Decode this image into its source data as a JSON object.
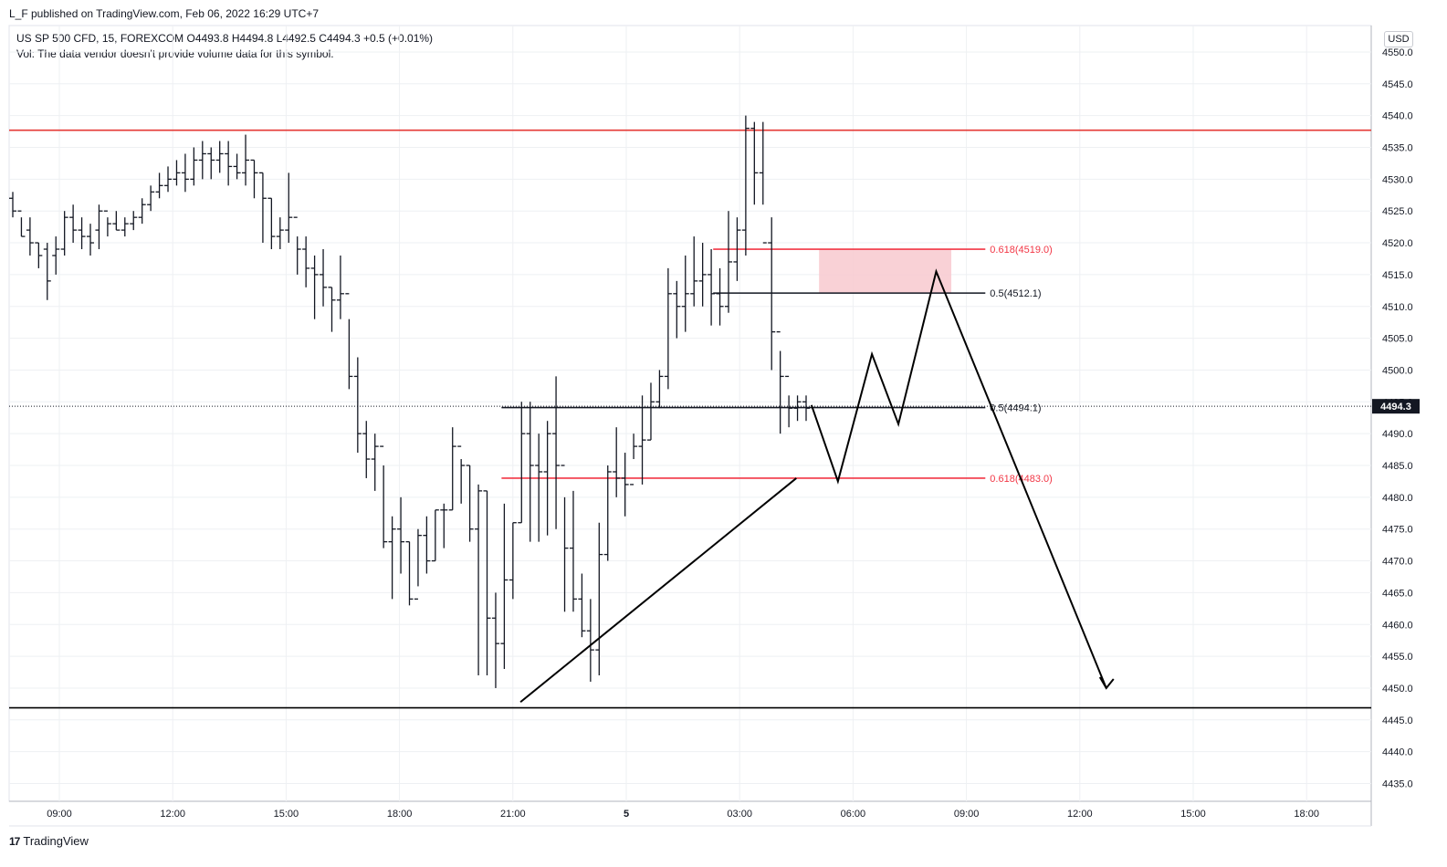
{
  "header": {
    "published": "L_F published on TradingView.com, Feb 06, 2022 16:29 UTC+7",
    "symbol_line": "US SP 500 CFD, 15, FOREXCOM  O4493.8  H4494.8  L4492.5  C4494.3  +0.5 (+0.01%)",
    "volume_line": "Vol: The data vendor doesn't provide volume data for this symbol.",
    "currency": "USD"
  },
  "footer": {
    "logo": "17",
    "brand": "TradingView"
  },
  "colors": {
    "bars": "#131722",
    "resistance": "#e53935",
    "support": "#000000",
    "fib_red": "#f23645",
    "zone": "#f8c9cf",
    "grid": "#eef0f3"
  },
  "chart_data": {
    "type": "ohlc-bar",
    "symbol": "US SP 500 CFD",
    "timeframe": "15",
    "y_axis_ticks": [
      4435,
      4440,
      4445,
      4450,
      4455,
      4460,
      4465,
      4470,
      4475,
      4480,
      4485,
      4490,
      4495,
      4500,
      4505,
      4510,
      4515,
      4520,
      4525,
      4530,
      4535,
      4540,
      4545,
      4550
    ],
    "ylim": [
      4432.4,
      4555.3
    ],
    "last_price": "4494.3",
    "x_ticks": [
      "09:00",
      "12:00",
      "15:00",
      "18:00",
      "21:00",
      "5",
      "03:00",
      "06:00",
      "09:00",
      "12:00",
      "15:00",
      "18:00"
    ],
    "bars": [
      [
        4527,
        4528,
        4524,
        4525
      ],
      [
        4525,
        4524,
        4521,
        4521
      ],
      [
        4522,
        4524,
        4518,
        4520
      ],
      [
        4520,
        4520,
        4516,
        4518
      ],
      [
        4519,
        4520,
        4511,
        4514
      ],
      [
        4518,
        4521,
        4515,
        4519
      ],
      [
        4519,
        4525,
        4518,
        4524
      ],
      [
        4524,
        4526,
        4520,
        4522
      ],
      [
        4522,
        4524,
        4519,
        4521
      ],
      [
        4521,
        4523,
        4518,
        4520
      ],
      [
        4522,
        4526,
        4519,
        4525
      ],
      [
        4525,
        4524,
        4521,
        4523
      ],
      [
        4523,
        4525,
        4522,
        4522
      ],
      [
        4522,
        4524,
        4521,
        4523
      ],
      [
        4523,
        4525,
        4522,
        4524
      ],
      [
        4524,
        4527,
        4523,
        4526
      ],
      [
        4526,
        4529,
        4525,
        4528
      ],
      [
        4528,
        4531,
        4527,
        4529
      ],
      [
        4529,
        4532,
        4528,
        4530
      ],
      [
        4530,
        4533,
        4529,
        4531
      ],
      [
        4531,
        4534,
        4528,
        4530
      ],
      [
        4530,
        4535,
        4529,
        4533
      ],
      [
        4533,
        4536,
        4530,
        4534
      ],
      [
        4534,
        4535,
        4530,
        4533
      ],
      [
        4533,
        4536,
        4531,
        4534
      ],
      [
        4534,
        4536,
        4529,
        4532
      ],
      [
        4532,
        4534,
        4530,
        4531
      ],
      [
        4531,
        4537,
        4529,
        4533
      ],
      [
        4533,
        4533,
        4527,
        4531
      ],
      [
        4531,
        4531,
        4520,
        4527
      ],
      [
        4527,
        4527,
        4519,
        4521
      ],
      [
        4521,
        4524,
        4519,
        4522
      ],
      [
        4522,
        4531,
        4520,
        4524
      ],
      [
        4524,
        4521,
        4515,
        4519
      ],
      [
        4519,
        4521,
        4513,
        4516
      ],
      [
        4516,
        4518,
        4508,
        4515
      ],
      [
        4515,
        4519,
        4510,
        4513
      ],
      [
        4513,
        4513,
        4506,
        4511
      ],
      [
        4511,
        4518,
        4508,
        4512
      ],
      [
        4512,
        4508,
        4497,
        4499
      ],
      [
        4499,
        4502,
        4487,
        4490
      ],
      [
        4490,
        4492,
        4483,
        4486
      ],
      [
        4486,
        4490,
        4481,
        4488
      ],
      [
        4488,
        4485,
        4472,
        4473
      ],
      [
        4473,
        4477,
        4464,
        4475
      ],
      [
        4475,
        4480,
        4468,
        4473
      ],
      [
        4473,
        4473,
        4463,
        4464
      ],
      [
        4464,
        4475,
        4466,
        4474
      ],
      [
        4474,
        4477,
        4468,
        4470
      ],
      [
        4470,
        4478,
        4470,
        4478
      ],
      [
        4478,
        4479,
        4472,
        4478
      ],
      [
        4478,
        4491,
        4478,
        4488
      ],
      [
        4488,
        4486,
        4479,
        4485
      ],
      [
        4485,
        4485,
        4473,
        4475
      ],
      [
        4475,
        4482,
        4452,
        4481
      ],
      [
        4481,
        4481,
        4452,
        4461
      ],
      [
        4461,
        4465,
        4450,
        4457
      ],
      [
        4457,
        4479,
        4453,
        4467
      ],
      [
        4467,
        4476,
        4464,
        4476
      ],
      [
        4476,
        4495,
        4476,
        4490
      ],
      [
        4490,
        4495,
        4473,
        4485
      ],
      [
        4485,
        4490,
        4473,
        4484
      ],
      [
        4484,
        4492,
        4474,
        4490
      ],
      [
        4490,
        4499,
        4475,
        4485
      ],
      [
        4485,
        4480,
        4462,
        4472
      ],
      [
        4472,
        4481,
        4462,
        4464
      ],
      [
        4464,
        4468,
        4458,
        4459
      ],
      [
        4459,
        4464,
        4451,
        4456
      ],
      [
        4456,
        4476,
        4452,
        4471
      ],
      [
        4471,
        4485,
        4470,
        4484
      ],
      [
        4484,
        4491,
        4480,
        4483
      ],
      [
        4483,
        4487,
        4477,
        4482
      ],
      [
        4482,
        4490,
        4486,
        4488
      ],
      [
        4488,
        4496,
        4482,
        4489
      ],
      [
        4489,
        4498,
        4489,
        4495
      ],
      [
        4495,
        4500,
        4494,
        4499
      ],
      [
        4499,
        4516,
        4497,
        4512
      ],
      [
        4512,
        4514,
        4505,
        4510
      ],
      [
        4510,
        4518,
        4506,
        4512
      ],
      [
        4512,
        4521,
        4510,
        4514
      ],
      [
        4514,
        4520,
        4510,
        4515
      ],
      [
        4515,
        4519,
        4507,
        4512
      ],
      [
        4512,
        4516,
        4507,
        4510
      ],
      [
        4510,
        4525,
        4509,
        4517
      ],
      [
        4517,
        4524,
        4514,
        4522
      ],
      [
        4522,
        4540,
        4518,
        4538
      ],
      [
        4538,
        4539,
        4526,
        4531
      ],
      [
        4531,
        4539,
        4526,
        4520
      ],
      [
        4520,
        4524,
        4500,
        4506
      ],
      [
        4506,
        4503,
        4490,
        4499
      ],
      [
        4499,
        4496,
        4491,
        4494
      ],
      [
        4494,
        4496,
        4492,
        4495
      ],
      [
        4495,
        4496,
        4492,
        4494
      ]
    ],
    "horizontal_lines": [
      {
        "price": 4537.7,
        "color": "red"
      },
      {
        "price": 4446.9,
        "color": "black"
      }
    ],
    "fib_levels": [
      {
        "label": "0.618(4519.0)",
        "price": 4519.0,
        "color": "red"
      },
      {
        "label": "0.5(4512.1)",
        "price": 4512.1,
        "color": "black"
      },
      {
        "label": "0.5(4494.1)",
        "price": 4494.1,
        "color": "black"
      },
      {
        "label": "0.618(4483.0)",
        "price": 4483.0,
        "color": "red"
      }
    ],
    "zone": {
      "from": 4512.1,
      "to": 4519.0,
      "color": "pink"
    },
    "trendline": {
      "from": 4447.8,
      "to": 4483.0
    },
    "projection": [
      4494.5,
      4482.5,
      4502.5,
      4491.5,
      4515.5,
      4450.0
    ]
  }
}
